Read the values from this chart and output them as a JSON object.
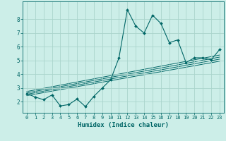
{
  "title": "",
  "xlabel": "Humidex (Indice chaleur)",
  "bg_color": "#cceee8",
  "grid_color": "#aad4cc",
  "line_color": "#006666",
  "xlim": [
    -0.5,
    23.5
  ],
  "ylim": [
    1.2,
    9.3
  ],
  "xticks": [
    0,
    1,
    2,
    3,
    4,
    5,
    6,
    7,
    8,
    9,
    10,
    11,
    12,
    13,
    14,
    15,
    16,
    17,
    18,
    19,
    20,
    21,
    22,
    23
  ],
  "yticks": [
    2,
    3,
    4,
    5,
    6,
    7,
    8
  ],
  "main_x": [
    0,
    1,
    2,
    3,
    4,
    5,
    6,
    7,
    8,
    9,
    10,
    11,
    12,
    13,
    14,
    15,
    16,
    17,
    18,
    19,
    20,
    21,
    22,
    23
  ],
  "main_y": [
    2.6,
    2.35,
    2.15,
    2.5,
    1.7,
    1.8,
    2.2,
    1.65,
    2.4,
    3.0,
    3.6,
    5.2,
    8.7,
    7.5,
    7.0,
    8.3,
    7.7,
    6.3,
    6.5,
    4.85,
    5.2,
    5.2,
    5.05,
    5.8
  ],
  "trend_lines": [
    {
      "x": [
        0,
        23
      ],
      "y": [
        2.45,
        4.95
      ]
    },
    {
      "x": [
        0,
        23
      ],
      "y": [
        2.55,
        5.1
      ]
    },
    {
      "x": [
        0,
        23
      ],
      "y": [
        2.65,
        5.25
      ]
    },
    {
      "x": [
        0,
        23
      ],
      "y": [
        2.75,
        5.4
      ]
    }
  ]
}
